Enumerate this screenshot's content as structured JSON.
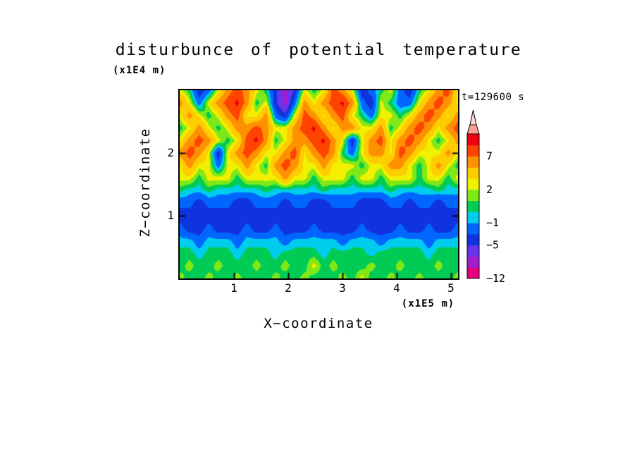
{
  "chart_data": {
    "type": "heatmap",
    "title": "disturbunce of potential temperature",
    "annotation": "t=129600 s",
    "ylabel": "Z−coordinate",
    "y_unit": "(x1E4 m)",
    "xlabel": "X−coordinate",
    "x_unit": "(x1E5 m)",
    "x_max": 5.13,
    "z_max": 3.0,
    "x_ticks": [
      "1",
      "2",
      "3",
      "4",
      "5"
    ],
    "x_tick_values": [
      1,
      2,
      3,
      4,
      5
    ],
    "z_ticks": [
      "1",
      "2"
    ],
    "z_tick_values": [
      1,
      2
    ],
    "levels": [
      -12,
      -9,
      -7,
      -5,
      -3,
      -1,
      0,
      1,
      2,
      3,
      5,
      7,
      9,
      11
    ],
    "bin_colors": [
      "#e6007e",
      "#a020d0",
      "#6633ee",
      "#1133dd",
      "#0066ff",
      "#00ccee",
      "#00cc55",
      "#7fe817",
      "#f0f000",
      "#ffcc00",
      "#ff9100",
      "#ff4400",
      "#ee0011"
    ],
    "arrow_colors": [
      "#ff9f8f",
      "#ffd9d0"
    ],
    "colorbar_labels": [
      {
        "text": "7",
        "value": 7
      },
      {
        "text": "2",
        "value": 2
      },
      {
        "text": "−1",
        "value": -1
      },
      {
        "text": "−5",
        "value": -5
      },
      {
        "text": "−12",
        "value": -12
      }
    ],
    "grid": [
      [
        2.5,
        0.4,
        -4.5,
        -2,
        2.5,
        6,
        8,
        6,
        2.5,
        0.4,
        -4.5,
        -8,
        -4.5,
        2.5,
        0.4,
        2.5,
        8,
        6,
        2.5,
        -4.5,
        -2,
        0.4,
        2.5,
        -2,
        -4.5,
        0.4,
        2.5,
        6,
        8,
        2.5
      ],
      [
        6,
        2.5,
        -2,
        2.5,
        6,
        8,
        9.5,
        6,
        0.4,
        2.5,
        -4.5,
        -8,
        -2,
        6,
        2.5,
        6,
        8,
        9.5,
        6,
        -2,
        -4.5,
        2.5,
        0.4,
        -2,
        -2,
        2.5,
        6,
        8,
        6,
        2.5
      ],
      [
        2.5,
        6,
        2.5,
        0.4,
        2.5,
        6,
        8,
        2.5,
        2.5,
        6,
        -2,
        -4.5,
        2.5,
        8,
        6,
        2.5,
        6,
        8,
        2.5,
        0.4,
        -2,
        2.5,
        2.5,
        0.4,
        2.5,
        6,
        8,
        6,
        2.5,
        6
      ],
      [
        0.4,
        2.5,
        6,
        2.5,
        0.4,
        2.5,
        6,
        6,
        8,
        6,
        2.5,
        2.5,
        6,
        8,
        9.5,
        6,
        2.5,
        6,
        6,
        2.5,
        2.5,
        6,
        0.4,
        2.5,
        6,
        8,
        6,
        2.5,
        6,
        8
      ],
      [
        2.5,
        6,
        8,
        6,
        2.5,
        0.4,
        2.5,
        8,
        9.5,
        6,
        0.4,
        2.5,
        6,
        6,
        8,
        9.5,
        6,
        2.5,
        -4.5,
        2.5,
        6,
        8,
        2.5,
        6,
        8,
        6,
        2.5,
        0.4,
        2.5,
        6
      ],
      [
        6,
        8,
        6,
        2.5,
        -4.5,
        2.5,
        6,
        8,
        6,
        2.5,
        2.5,
        6,
        8,
        2.5,
        6,
        8,
        6,
        0.4,
        -2,
        2.5,
        6,
        6,
        2.5,
        8,
        6,
        2.5,
        2.5,
        2.5,
        6,
        2.5
      ],
      [
        2.5,
        6,
        2.5,
        2.5,
        -2,
        2.5,
        2.5,
        6,
        2.5,
        0.4,
        6,
        8,
        6,
        2.5,
        2.5,
        6,
        2.5,
        2.5,
        2.5,
        0.4,
        2.5,
        2.5,
        6,
        6,
        2.5,
        0.4,
        2.5,
        6,
        2.5,
        0.4
      ],
      [
        2.5,
        2.5,
        0.4,
        2.5,
        2.5,
        2.5,
        0.4,
        2.5,
        2.5,
        2.5,
        2.5,
        6,
        2.5,
        2.5,
        0.4,
        2.5,
        2.5,
        2.5,
        0.4,
        2.5,
        2.5,
        0.4,
        2.5,
        2.5,
        2.5,
        0.4,
        2.5,
        2.5,
        0.4,
        2.5
      ],
      [
        0.4,
        -0.5,
        -0.5,
        0.4,
        -0.5,
        -0.5,
        -0.5,
        -0.5,
        -0.5,
        0.4,
        -0.5,
        -0.5,
        -0.5,
        -0.5,
        -0.5,
        0.4,
        -0.5,
        -0.5,
        -0.5,
        -0.5,
        -0.5,
        -0.5,
        0.4,
        -0.5,
        -0.5,
        -0.5,
        -0.5,
        0.4,
        -0.5,
        -0.5
      ],
      [
        -2,
        -2,
        -4.5,
        -2,
        -2,
        -2,
        -4.5,
        -4.5,
        -2,
        -2,
        -2,
        -4.5,
        -2,
        -2,
        -4.5,
        -4.5,
        -2,
        -2,
        -2,
        -4.5,
        -4.5,
        -4.5,
        -2,
        -2,
        -4.5,
        -2,
        -2,
        -4.5,
        -2,
        -2
      ],
      [
        -4.5,
        -4.5,
        -4.5,
        -4.5,
        -4.5,
        -4.5,
        -4.5,
        -4.5,
        -4.5,
        -4.5,
        -4.5,
        -4.5,
        -4.5,
        -4.5,
        -4.5,
        -4.5,
        -4.5,
        -4.5,
        -4.5,
        -4.5,
        -4.5,
        -4.5,
        -4.5,
        -4.5,
        -4.5,
        -4.5,
        -4.5,
        -4.5,
        -4.5,
        -4.5
      ],
      [
        -2,
        -4.5,
        -4.5,
        -2,
        -4.5,
        -4.5,
        -4.5,
        -2,
        -4.5,
        -4.5,
        -2,
        -4.5,
        -4.5,
        -4.5,
        -2,
        -4.5,
        -4.5,
        -4.5,
        -4.5,
        -2,
        -4.5,
        -4.5,
        -4.5,
        -2,
        -4.5,
        -4.5,
        -2,
        -4.5,
        -4.5,
        -2
      ],
      [
        -0.5,
        -0.5,
        -2,
        -0.5,
        -0.5,
        -0.5,
        -2,
        -0.5,
        -0.5,
        -0.5,
        -0.5,
        -2,
        -0.5,
        -0.5,
        -0.5,
        -0.5,
        -0.5,
        -2,
        -0.5,
        -0.5,
        -0.5,
        -2,
        -0.5,
        -0.5,
        -0.5,
        -0.5,
        -2,
        -0.5,
        -0.5,
        -0.5
      ],
      [
        0.4,
        0.4,
        -0.5,
        0.4,
        0.4,
        0.4,
        -0.5,
        0.4,
        0.4,
        0.4,
        -0.5,
        0.4,
        0.4,
        0.4,
        0.4,
        -0.5,
        0.4,
        0.4,
        0.4,
        0.4,
        -0.5,
        0.4,
        0.4,
        0.4,
        0.4,
        0.4,
        -0.5,
        0.4,
        0.4,
        0.4
      ],
      [
        0.4,
        1.5,
        0.4,
        0.4,
        1.5,
        0.4,
        0.4,
        0.4,
        1.5,
        0.4,
        0.4,
        1.5,
        0.4,
        0.4,
        2.5,
        0.4,
        1.5,
        0.4,
        0.4,
        0.4,
        1.5,
        0.4,
        0.4,
        1.5,
        0.4,
        0.4,
        0.4,
        1.5,
        0.4,
        0.4
      ],
      [
        1.5,
        0.4,
        0.4,
        1.5,
        0.4,
        0.4,
        1.5,
        0.4,
        0.4,
        0.4,
        1.5,
        0.4,
        0.4,
        1.5,
        0.4,
        0.4,
        0.4,
        1.5,
        0.4,
        2.5,
        0.4,
        0.4,
        1.5,
        0.4,
        0.4,
        1.5,
        0.4,
        0.4,
        0.4,
        1.5
      ]
    ]
  }
}
